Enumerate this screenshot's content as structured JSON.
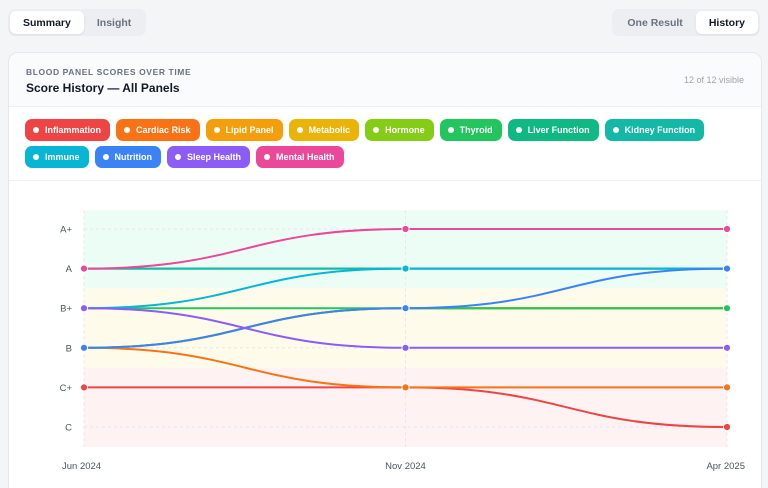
{
  "tabs_left": [
    {
      "label": "Summary",
      "active": true
    },
    {
      "label": "Insight",
      "active": false
    }
  ],
  "tabs_right": [
    {
      "label": "One Result",
      "active": false
    },
    {
      "label": "History",
      "active": true
    }
  ],
  "card": {
    "overline": "BLOOD PANEL SCORES OVER TIME",
    "title": "Score History — All Panels",
    "visible_count": "12 of 12 visible"
  },
  "legend": [
    {
      "label": "Inflammation",
      "color": "#ef4444"
    },
    {
      "label": "Cardiac Risk",
      "color": "#f97316"
    },
    {
      "label": "Lipid Panel",
      "color": "#f59e0b"
    },
    {
      "label": "Metabolic",
      "color": "#eab308"
    },
    {
      "label": "Hormone",
      "color": "#84cc16"
    },
    {
      "label": "Thyroid",
      "color": "#22c55e"
    },
    {
      "label": "Liver Function",
      "color": "#10b981"
    },
    {
      "label": "Kidney Function",
      "color": "#14b8a6"
    },
    {
      "label": "Immune",
      "color": "#06b6d4"
    },
    {
      "label": "Nutrition",
      "color": "#3b82f6"
    },
    {
      "label": "Sleep Health",
      "color": "#8b5cf6"
    },
    {
      "label": "Mental Health",
      "color": "#ec4899"
    }
  ],
  "chart_data": {
    "type": "line",
    "x": [
      "Jun 2024",
      "Nov 2024",
      "Apr 2025"
    ],
    "y_categories": [
      "C",
      "C+",
      "B",
      "B+",
      "A",
      "A+"
    ],
    "grid": true,
    "bands": [
      {
        "from": "A",
        "to": "A+",
        "color": "#ecfdf5"
      },
      {
        "from": "B",
        "to": "B+",
        "color": "#fffbeb"
      },
      {
        "from": "C",
        "to": "C+",
        "color": "#fef2f2"
      }
    ],
    "series": [
      {
        "name": "Inflammation",
        "color": "#ef4444",
        "values": [
          "C+",
          "C+",
          "C"
        ]
      },
      {
        "name": "Cardiac Risk",
        "color": "#f97316",
        "values": [
          "B",
          "C+",
          "C+"
        ]
      },
      {
        "name": "Lipid Panel",
        "color": "#f59e0b",
        "values": [
          "B",
          "B+",
          "B+"
        ]
      },
      {
        "name": "Metabolic",
        "color": "#eab308",
        "values": [
          "B",
          "B+",
          "B+"
        ]
      },
      {
        "name": "Hormone",
        "color": "#84cc16",
        "values": [
          "B",
          "B+",
          "B+"
        ]
      },
      {
        "name": "Thyroid",
        "color": "#22c55e",
        "values": [
          "B+",
          "B+",
          "B+"
        ]
      },
      {
        "name": "Liver Function",
        "color": "#10b981",
        "values": [
          "A",
          "A",
          "A"
        ]
      },
      {
        "name": "Kidney Function",
        "color": "#14b8a6",
        "values": [
          "A",
          "A",
          "A"
        ]
      },
      {
        "name": "Immune",
        "color": "#06b6d4",
        "values": [
          "B+",
          "A",
          "A"
        ]
      },
      {
        "name": "Nutrition",
        "color": "#3b82f6",
        "values": [
          "B",
          "B+",
          "A"
        ]
      },
      {
        "name": "Sleep Health",
        "color": "#8b5cf6",
        "values": [
          "B+",
          "B",
          "B"
        ]
      },
      {
        "name": "Mental Health",
        "color": "#ec4899",
        "values": [
          "A",
          "A+",
          "A+"
        ]
      }
    ]
  }
}
